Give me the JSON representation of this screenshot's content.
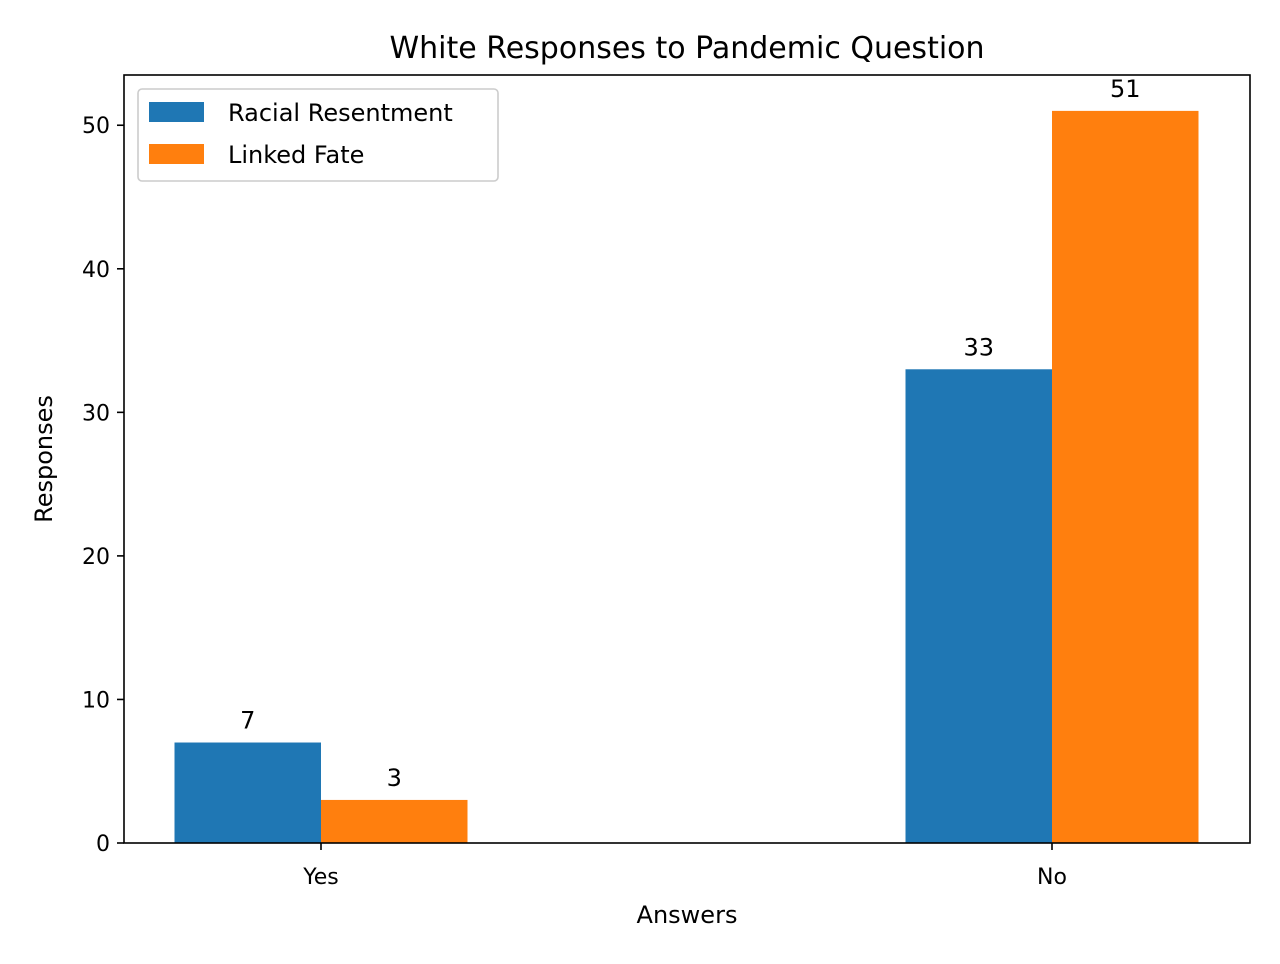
{
  "chart_data": {
    "type": "bar",
    "title": "White Responses to Pandemic Question",
    "xlabel": "Answers",
    "ylabel": "Responses",
    "categories": [
      "Yes",
      "No"
    ],
    "series": [
      {
        "name": "Racial Resentment",
        "values": [
          7,
          33
        ],
        "color": "#1f77b4"
      },
      {
        "name": "Linked Fate",
        "values": [
          3,
          51
        ],
        "color": "#ff7f0e"
      }
    ],
    "ylim": [
      0,
      53.5
    ],
    "yticks": [
      0,
      10,
      20,
      30,
      40,
      50
    ],
    "grid": false,
    "legend_position": "top-left"
  }
}
